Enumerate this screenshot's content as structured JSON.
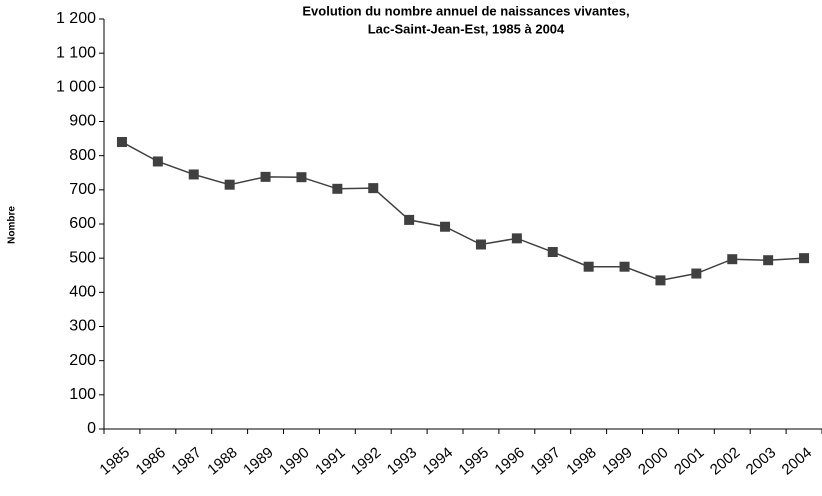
{
  "chart_data": {
    "type": "line",
    "title": [
      "Evolution du nombre annuel de naissances vivantes,",
      "Lac-Saint-Jean-Est, 1985 à 2004"
    ],
    "y_label": "Nombre",
    "categories": [
      "1985",
      "1986",
      "1987",
      "1988",
      "1989",
      "1990",
      "1991",
      "1992",
      "1993",
      "1994",
      "1995",
      "1996",
      "1997",
      "1998",
      "1999",
      "2000",
      "2001",
      "2002",
      "2003",
      "2004"
    ],
    "series": [
      {
        "color": "#404040",
        "values": [
          840,
          783,
          745,
          715,
          738,
          737,
          703,
          705,
          612,
          592,
          540,
          558,
          518,
          475,
          475,
          435,
          455,
          497,
          494,
          500
        ]
      }
    ],
    "ylim": [
      0,
      1200
    ],
    "yticks": [
      0,
      100,
      200,
      300,
      400,
      500,
      600,
      700,
      800,
      900,
      {
        "value": 1000,
        "label": "1 000"
      },
      {
        "value": 1100,
        "label": "1 100"
      },
      {
        "value": 1200,
        "label": "1 200"
      }
    ],
    "grid": false
  }
}
